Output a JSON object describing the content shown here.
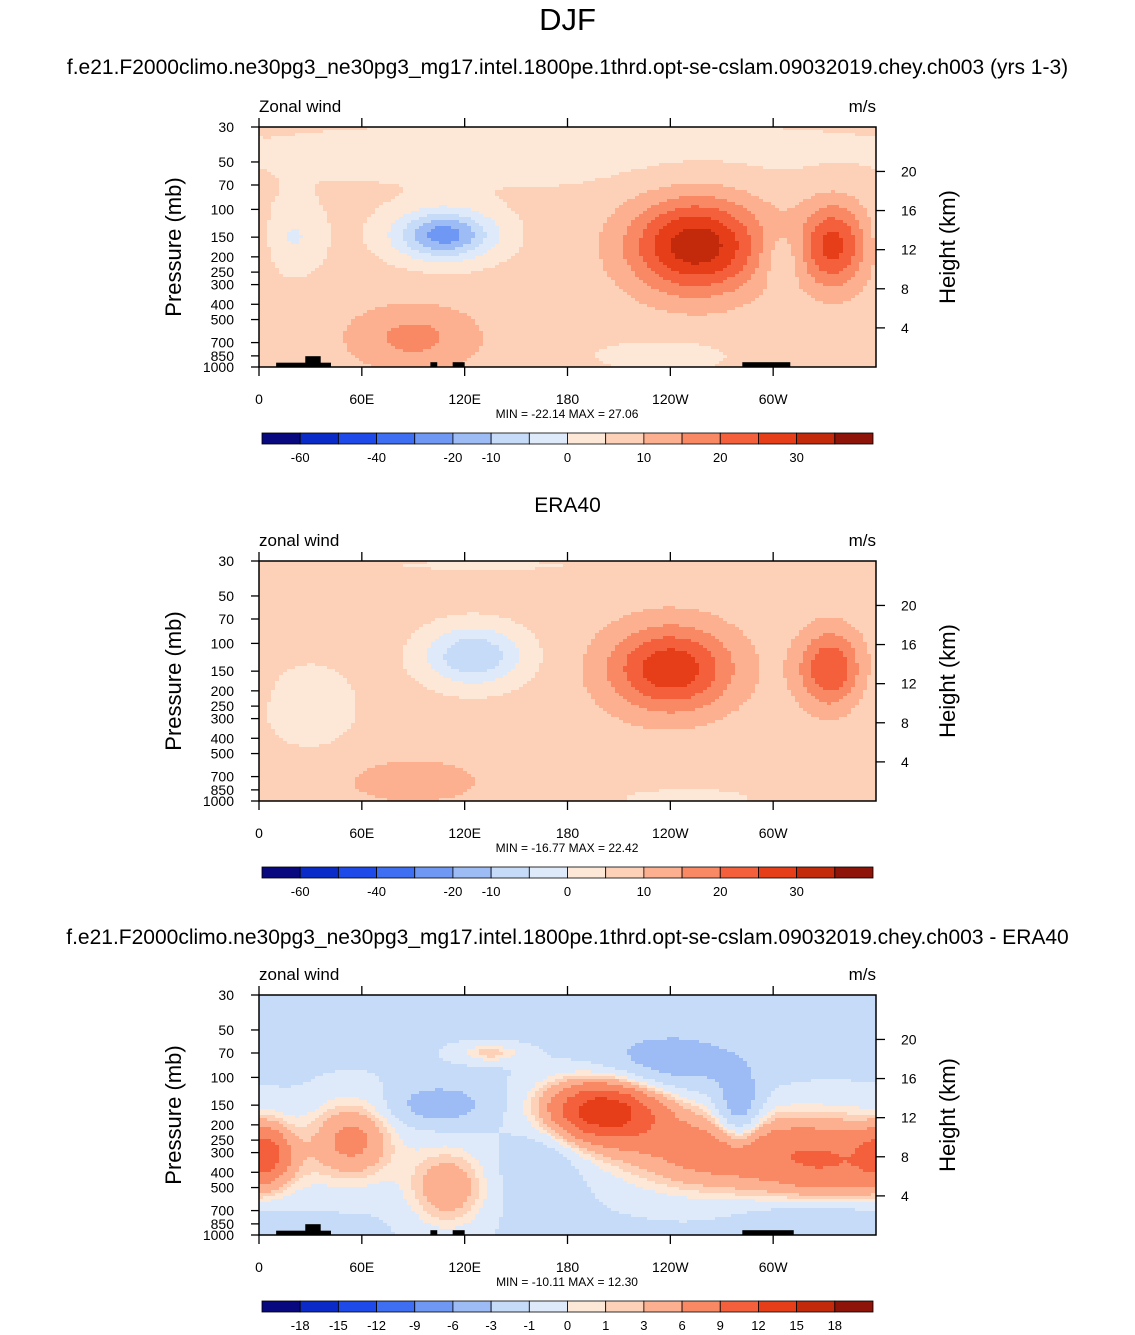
{
  "title": "DJF",
  "case_title": "f.e21.F2000climo.ne30pg3_ne30pg3_mg17.intel.1800pe.1thrd.opt-se-cslam.09032019.chey.ch003 (yrs 1-3)",
  "obs_title": "ERA40",
  "diff_title": "f.e21.F2000climo.ne30pg3_ne30pg3_mg17.intel.1800pe.1thrd.opt-se-cslam.09032019.chey.ch003 - ERA40",
  "colors": {
    "main_scale": [
      "#08087f",
      "#0b2bc9",
      "#1e4ae9",
      "#3e6ef2",
      "#6e98f3",
      "#9dbcf6",
      "#c6dbf8",
      "#deeafa",
      "#fde8d7",
      "#fdd1b8",
      "#fcb090",
      "#f98864",
      "#f4603c",
      "#e63e18",
      "#c22a0b",
      "#8e1308"
    ],
    "diff_scale": [
      "#08087f",
      "#0b2bc9",
      "#1e4ae9",
      "#3e6ef2",
      "#6e98f3",
      "#9dbcf6",
      "#c6dbf8",
      "#deeafa",
      "#fde8d7",
      "#fdd1b8",
      "#fcb090",
      "#f98864",
      "#f4603c",
      "#e63e18",
      "#c22a0b",
      "#8e1308"
    ],
    "topography": "#000000"
  },
  "chart_data": [
    {
      "type": "heatmap",
      "name": "model",
      "left_title": "Zonal wind",
      "units": "m/s",
      "xlabel": "",
      "ylabel": "Pressure (mb)",
      "ylabel_right": "Height (km)",
      "x_ticks": [
        "0",
        "60E",
        "120E",
        "180",
        "120W",
        "60W"
      ],
      "x_tick_values": [
        0,
        60,
        120,
        180,
        240,
        300
      ],
      "xlim": [
        0,
        360
      ],
      "y_ticks": [
        "30",
        "50",
        "70",
        "100",
        "150",
        "200",
        "250",
        "300",
        "400",
        "500",
        "700",
        "850",
        "1000"
      ],
      "y_tick_values": [
        30,
        50,
        70,
        100,
        150,
        200,
        250,
        300,
        400,
        500,
        700,
        850,
        1000
      ],
      "ylim": [
        1000,
        30
      ],
      "height_ticks": [
        "20",
        "16",
        "12",
        "8",
        "4"
      ],
      "height_tick_values": [
        20,
        16,
        12,
        8,
        4
      ],
      "stats": "MIN = -22.14  MAX =  27.06",
      "min": -22.14,
      "max": 27.06,
      "colorbar_labels": [
        "-60",
        "-40",
        "-20",
        "-10",
        "0",
        "10",
        "20",
        "30"
      ],
      "levels": [
        -60,
        -50,
        -40,
        -30,
        -20,
        -15,
        -10,
        -5,
        0,
        5,
        10,
        15,
        20,
        25,
        30
      ],
      "background": 1.5,
      "features": [
        {
          "lon": 255,
          "p": 170,
          "amp": 27,
          "slon": 28,
          "slog": 0.5
        },
        {
          "lon": 335,
          "p": 170,
          "amp": 20,
          "slon": 14,
          "slog": 0.45
        },
        {
          "lon": 108,
          "p": 145,
          "amp": -24,
          "slon": 20,
          "slog": 0.25
        },
        {
          "lon": 305,
          "p": 200,
          "amp": -6,
          "slon": 9,
          "slog": 0.3
        },
        {
          "lon": 20,
          "p": 150,
          "amp": -7,
          "slon": 12,
          "slog": 0.35
        },
        {
          "lon": 90,
          "p": 650,
          "amp": 10,
          "slon": 28,
          "slog": 0.35
        },
        {
          "lon": 235,
          "p": 850,
          "amp": -5,
          "slon": 25,
          "slog": 0.15
        },
        {
          "lon": 185,
          "p": 45,
          "amp": -3,
          "slon": 180,
          "slog": 0.4
        }
      ],
      "topography": [
        {
          "lon0": 10,
          "lon1": 42,
          "h": 0.018
        },
        {
          "lon0": 27,
          "lon1": 36,
          "h": 0.045
        },
        {
          "lon0": 100,
          "lon1": 104,
          "h": 0.02
        },
        {
          "lon0": 113,
          "lon1": 120,
          "h": 0.02
        },
        {
          "lon0": 282,
          "lon1": 310,
          "h": 0.02
        }
      ]
    },
    {
      "type": "heatmap",
      "name": "obs",
      "left_title": "zonal wind",
      "units": "m/s",
      "xlabel": "",
      "ylabel": "Pressure (mb)",
      "ylabel_right": "Height (km)",
      "x_ticks": [
        "0",
        "60E",
        "120E",
        "180",
        "120W",
        "60W"
      ],
      "x_tick_values": [
        0,
        60,
        120,
        180,
        240,
        300
      ],
      "xlim": [
        0,
        360
      ],
      "y_ticks": [
        "30",
        "50",
        "70",
        "100",
        "150",
        "200",
        "250",
        "300",
        "400",
        "500",
        "700",
        "850",
        "1000"
      ],
      "y_tick_values": [
        30,
        50,
        70,
        100,
        150,
        200,
        250,
        300,
        400,
        500,
        700,
        850,
        1000
      ],
      "ylim": [
        1000,
        30
      ],
      "height_ticks": [
        "20",
        "16",
        "12",
        "8",
        "4"
      ],
      "height_tick_values": [
        20,
        16,
        12,
        8,
        4
      ],
      "stats": "MIN = -16.77  MAX =  22.42",
      "min": -16.77,
      "max": 22.42,
      "colorbar_labels": [
        "-60",
        "-40",
        "-20",
        "-10",
        "0",
        "10",
        "20",
        "30"
      ],
      "levels": [
        -60,
        -50,
        -40,
        -30,
        -20,
        -15,
        -10,
        -5,
        0,
        5,
        10,
        15,
        20,
        25,
        30
      ],
      "background": 2.0,
      "features": [
        {
          "lon": 240,
          "p": 145,
          "amp": 22,
          "slon": 26,
          "slog": 0.45
        },
        {
          "lon": 333,
          "p": 145,
          "amp": 18,
          "slon": 13,
          "slog": 0.4
        },
        {
          "lon": 125,
          "p": 120,
          "amp": -17,
          "slon": 20,
          "slog": 0.3
        },
        {
          "lon": 30,
          "p": 250,
          "amp": -5,
          "slon": 20,
          "slog": 0.45
        },
        {
          "lon": 90,
          "p": 750,
          "amp": 6,
          "slon": 30,
          "slog": 0.25
        },
        {
          "lon": 250,
          "p": 950,
          "amp": -4,
          "slon": 30,
          "slog": 0.1
        },
        {
          "lon": 130,
          "p": 32,
          "amp": -4,
          "slon": 40,
          "slog": 0.05
        }
      ],
      "topography": []
    },
    {
      "type": "heatmap",
      "name": "difference",
      "left_title": "zonal wind",
      "units": "m/s",
      "xlabel": "",
      "ylabel": "Pressure (mb)",
      "ylabel_right": "Height (km)",
      "x_ticks": [
        "0",
        "60E",
        "120E",
        "180",
        "120W",
        "60W"
      ],
      "x_tick_values": [
        0,
        60,
        120,
        180,
        240,
        300
      ],
      "xlim": [
        0,
        360
      ],
      "y_ticks": [
        "30",
        "50",
        "70",
        "100",
        "150",
        "200",
        "250",
        "300",
        "400",
        "500",
        "700",
        "850",
        "1000"
      ],
      "y_tick_values": [
        30,
        50,
        70,
        100,
        150,
        200,
        250,
        300,
        400,
        500,
        700,
        850,
        1000
      ],
      "ylim": [
        1000,
        30
      ],
      "height_ticks": [
        "20",
        "16",
        "12",
        "8",
        "4"
      ],
      "height_tick_values": [
        20,
        16,
        12,
        8,
        4
      ],
      "stats": "MIN = -10.11  MAX =  12.30",
      "min": -10.11,
      "max": 12.3,
      "colorbar_labels": [
        "-18",
        "-15",
        "-12",
        "-9",
        "-6",
        "-3",
        "-1",
        "0",
        "1",
        "3",
        "6",
        "9",
        "12",
        "15",
        "18"
      ],
      "levels": [
        -21,
        -18,
        -15,
        -12,
        -9,
        -6,
        -3,
        -1,
        0,
        1,
        3,
        6,
        9,
        12,
        15,
        18
      ],
      "background": -3.5,
      "features": [
        {
          "lon": 200,
          "p": 160,
          "amp": 14,
          "slon": 26,
          "slog": 0.35
        },
        {
          "lon": 270,
          "p": 300,
          "amp": 8,
          "slon": 45,
          "slog": 0.45
        },
        {
          "lon": 340,
          "p": 350,
          "amp": 7,
          "slon": 30,
          "slog": 0.5
        },
        {
          "lon": 55,
          "p": 250,
          "amp": 7,
          "slon": 18,
          "slog": 0.45
        },
        {
          "lon": 110,
          "p": 500,
          "amp": 6,
          "slon": 18,
          "slog": 0.45
        },
        {
          "lon": 5,
          "p": 300,
          "amp": 6,
          "slon": 10,
          "slog": 0.3
        },
        {
          "lon": 280,
          "p": 160,
          "amp": -7,
          "slon": 9,
          "slog": 0.35
        },
        {
          "lon": 240,
          "p": 80,
          "amp": -5,
          "slon": 30,
          "slog": 0.3
        },
        {
          "lon": 105,
          "p": 150,
          "amp": -5,
          "slon": 20,
          "slog": 0.2
        },
        {
          "lon": 135,
          "p": 70,
          "amp": 4,
          "slon": 15,
          "slog": 0.1
        },
        {
          "lon": 330,
          "p": 800,
          "amp": -4,
          "slon": 30,
          "slog": 0.2
        },
        {
          "lon": 165,
          "p": 400,
          "amp": -3,
          "slon": 15,
          "slog": 0.5
        }
      ],
      "topography": [
        {
          "lon0": 10,
          "lon1": 42,
          "h": 0.018
        },
        {
          "lon0": 27,
          "lon1": 36,
          "h": 0.045
        },
        {
          "lon0": 100,
          "lon1": 104,
          "h": 0.02
        },
        {
          "lon0": 113,
          "lon1": 120,
          "h": 0.02
        },
        {
          "lon0": 282,
          "lon1": 312,
          "h": 0.02
        }
      ]
    }
  ]
}
